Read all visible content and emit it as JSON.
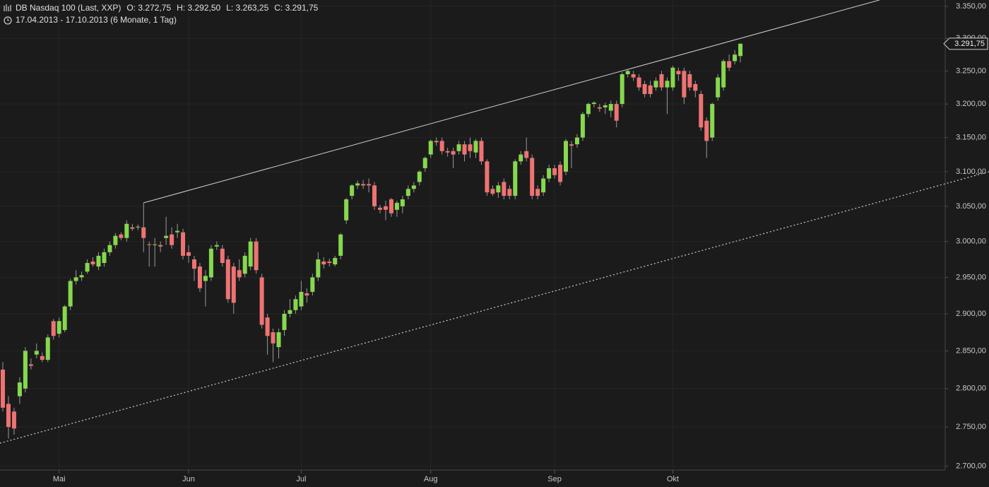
{
  "chart_data": {
    "type": "candlestick",
    "title": "DB Nasdaq 100 (Last, XXP)",
    "quote_labels": [
      "O: 3.272,75",
      "H: 3.292,50",
      "L: 3.263,25",
      "C: 3.291,75"
    ],
    "subtitle": "17.04.2013 - 17.10.2013 (6 Monate, 1 Tag)",
    "last_label": "3.291,75",
    "log_scale": true,
    "grid": true,
    "colors": {
      "up": "#86d84e",
      "down": "#ee7373",
      "wick": "#9a9a9a"
    },
    "categories": [
      null,
      null,
      null,
      null,
      null,
      null,
      null,
      null,
      null,
      null,
      "Mai",
      null,
      null,
      null,
      null,
      null,
      null,
      null,
      null,
      null,
      null,
      null,
      null,
      null,
      null,
      null,
      null,
      null,
      null,
      null,
      null,
      null,
      null,
      "Jun",
      null,
      null,
      null,
      null,
      null,
      null,
      null,
      null,
      null,
      null,
      null,
      null,
      null,
      null,
      null,
      null,
      null,
      null,
      null,
      "Jul",
      null,
      null,
      null,
      null,
      null,
      null,
      null,
      null,
      null,
      null,
      null,
      null,
      null,
      null,
      null,
      null,
      null,
      null,
      null,
      null,
      null,
      null,
      "Aug",
      null,
      null,
      null,
      null,
      null,
      null,
      null,
      null,
      null,
      null,
      null,
      null,
      null,
      null,
      null,
      null,
      null,
      null,
      null,
      null,
      null,
      "Sep",
      null,
      null,
      null,
      null,
      null,
      null,
      null,
      null,
      null,
      null,
      null,
      null,
      null,
      null,
      null,
      null,
      null,
      null,
      null,
      null,
      "Okt",
      null,
      null,
      null,
      null,
      null,
      null,
      null,
      null,
      null,
      null,
      null,
      null
    ],
    "open": [
      2825,
      2780,
      2770,
      2790,
      2800,
      2832,
      2845,
      2843,
      2838,
      2890,
      2873,
      2878,
      2910,
      2945,
      2950,
      2958,
      2972,
      2965,
      2970,
      2985,
      2995,
      3010,
      3005,
      3020,
      3020,
      3020,
      2996,
      2995,
      2995,
      3005,
      3010,
      3013,
      3013,
      2985,
      2975,
      2965,
      2945,
      2950,
      2993,
      2990,
      2975,
      2965,
      2960,
      2955,
      2965,
      3000,
      2950,
      2895,
      2875,
      2855,
      2878,
      2900,
      2905,
      2910,
      2928,
      2930,
      2950,
      2972,
      2972,
      2968,
      2980,
      3030,
      3065,
      3080,
      3082,
      3082,
      3080,
      3048,
      3050,
      3060,
      3045,
      3050,
      3065,
      3075,
      3085,
      3105,
      3125,
      3145,
      3145,
      3130,
      3130,
      3130,
      3140,
      3140,
      3128,
      3145,
      3115,
      3075,
      3070,
      3085,
      3075,
      3065,
      3115,
      3130,
      3120,
      3075,
      3070,
      3090,
      3105,
      3110,
      3100,
      3140,
      3140,
      3150,
      3185,
      3200,
      3195,
      3195,
      3190,
      3200,
      3200,
      3245,
      3245,
      3240,
      3230,
      3228,
      3225,
      3245,
      3225,
      3225,
      3250,
      3250,
      3245,
      3230,
      3215,
      3175,
      3150,
      3210,
      3225,
      3265,
      3265,
      3272.75
    ],
    "high": [
      2835,
      2790,
      2775,
      2815,
      2855,
      2840,
      2860,
      2848,
      2872,
      2893,
      2895,
      2912,
      2948,
      2960,
      2958,
      2975,
      2978,
      2985,
      2990,
      3000,
      3012,
      3013,
      3030,
      3025,
      3024,
      3055,
      3000,
      3005,
      3000,
      3035,
      3020,
      3025,
      3018,
      2995,
      2980,
      2970,
      2960,
      2995,
      3000,
      2995,
      2980,
      2970,
      2975,
      2985,
      3005,
      3005,
      2955,
      2900,
      2880,
      2880,
      2905,
      2920,
      2925,
      2945,
      2935,
      2955,
      2985,
      2978,
      2976,
      2980,
      3012,
      3062,
      3082,
      3087,
      3088,
      3090,
      3085,
      3052,
      3058,
      3062,
      3058,
      3065,
      3080,
      3085,
      3102,
      3122,
      3147,
      3150,
      3150,
      3135,
      3135,
      3145,
      3145,
      3150,
      3148,
      3150,
      3118,
      3080,
      3085,
      3090,
      3080,
      3118,
      3130,
      3150,
      3125,
      3080,
      3095,
      3110,
      3110,
      3115,
      3148,
      3145,
      3155,
      3188,
      3202,
      3204,
      3200,
      3202,
      3205,
      3205,
      3248,
      3252,
      3250,
      3245,
      3235,
      3235,
      3240,
      3250,
      3240,
      3258,
      3255,
      3255,
      3250,
      3235,
      3220,
      3180,
      3202,
      3245,
      3268,
      3275,
      3282,
      3292.5
    ],
    "low": [
      2770,
      2735,
      2740,
      2780,
      2795,
      2825,
      2840,
      2835,
      2835,
      2865,
      2868,
      2875,
      2905,
      2940,
      2945,
      2955,
      2965,
      2960,
      2965,
      2980,
      2990,
      3002,
      3000,
      3015,
      3016,
      2985,
      2965,
      2965,
      2985,
      2995,
      2990,
      3005,
      2975,
      2970,
      2945,
      2930,
      2910,
      2945,
      2988,
      2965,
      2915,
      2900,
      2945,
      2950,
      2960,
      2955,
      2880,
      2845,
      2835,
      2840,
      2870,
      2895,
      2900,
      2905,
      2915,
      2925,
      2945,
      2962,
      2965,
      2965,
      2975,
      3025,
      3060,
      3075,
      3075,
      3070,
      3045,
      3040,
      3030,
      3035,
      3035,
      3040,
      3060,
      3070,
      3080,
      3100,
      3120,
      3138,
      3125,
      3122,
      3105,
      3125,
      3115,
      3120,
      3120,
      3110,
      3065,
      3065,
      3062,
      3060,
      3060,
      3060,
      3110,
      3115,
      3060,
      3060,
      3065,
      3085,
      3090,
      3080,
      3095,
      3105,
      3135,
      3145,
      3180,
      3195,
      3188,
      3185,
      3180,
      3165,
      3195,
      3240,
      3235,
      3220,
      3210,
      3210,
      3220,
      3220,
      3185,
      3220,
      3235,
      3200,
      3220,
      3210,
      3160,
      3120,
      3145,
      3205,
      3220,
      3250,
      3260,
      3263.25
    ],
    "close": [
      2775,
      2750,
      2748,
      2808,
      2850,
      2830,
      2850,
      2838,
      2868,
      2870,
      2890,
      2910,
      2945,
      2950,
      2953,
      2970,
      2968,
      2980,
      2985,
      2995,
      3008,
      3005,
      3025,
      3018,
      3021,
      3005,
      2995,
      2996,
      2993,
      3008,
      2995,
      3015,
      2980,
      2980,
      2962,
      2935,
      2952,
      2990,
      2995,
      2970,
      2920,
      2915,
      2950,
      2980,
      3000,
      2960,
      2885,
      2870,
      2860,
      2875,
      2900,
      2905,
      2920,
      2930,
      2925,
      2950,
      2975,
      2968,
      2970,
      2977,
      3010,
      3060,
      3080,
      3083,
      3080,
      3080,
      3050,
      3045,
      3045,
      3040,
      3055,
      3060,
      3075,
      3080,
      3100,
      3120,
      3145,
      3143,
      3130,
      3128,
      3125,
      3140,
      3125,
      3130,
      3145,
      3115,
      3070,
      3068,
      3080,
      3065,
      3065,
      3115,
      3125,
      3120,
      3065,
      3065,
      3090,
      3105,
      3095,
      3085,
      3145,
      3138,
      3150,
      3185,
      3200,
      3202,
      3193,
      3198,
      3200,
      3175,
      3245,
      3250,
      3240,
      3225,
      3215,
      3215,
      3235,
      3225,
      3235,
      3255,
      3245,
      3210,
      3225,
      3220,
      3165,
      3145,
      3200,
      3240,
      3265,
      3255,
      3275,
      3291.75
    ],
    "ylim": [
      2695,
      3360
    ],
    "yticks": [
      {
        "value": 2700,
        "label": "2.700,00"
      },
      {
        "value": 2750,
        "label": "2.750,00"
      },
      {
        "value": 2800,
        "label": "2.800,00"
      },
      {
        "value": 2850,
        "label": "2.850,00"
      },
      {
        "value": 2900,
        "label": "2.900,00"
      },
      {
        "value": 2950,
        "label": "2.950,00"
      },
      {
        "value": 3000,
        "label": "3.000,00"
      },
      {
        "value": 3050,
        "label": "3.050,00"
      },
      {
        "value": 3100,
        "label": "3.100,00"
      },
      {
        "value": 3150,
        "label": "3.150,00"
      },
      {
        "value": 3200,
        "label": "3.200,00"
      },
      {
        "value": 3250,
        "label": "3.250,00"
      },
      {
        "value": 3300,
        "label": "3.300,00"
      },
      {
        "value": 3350,
        "label": "3.350,00"
      }
    ]
  }
}
